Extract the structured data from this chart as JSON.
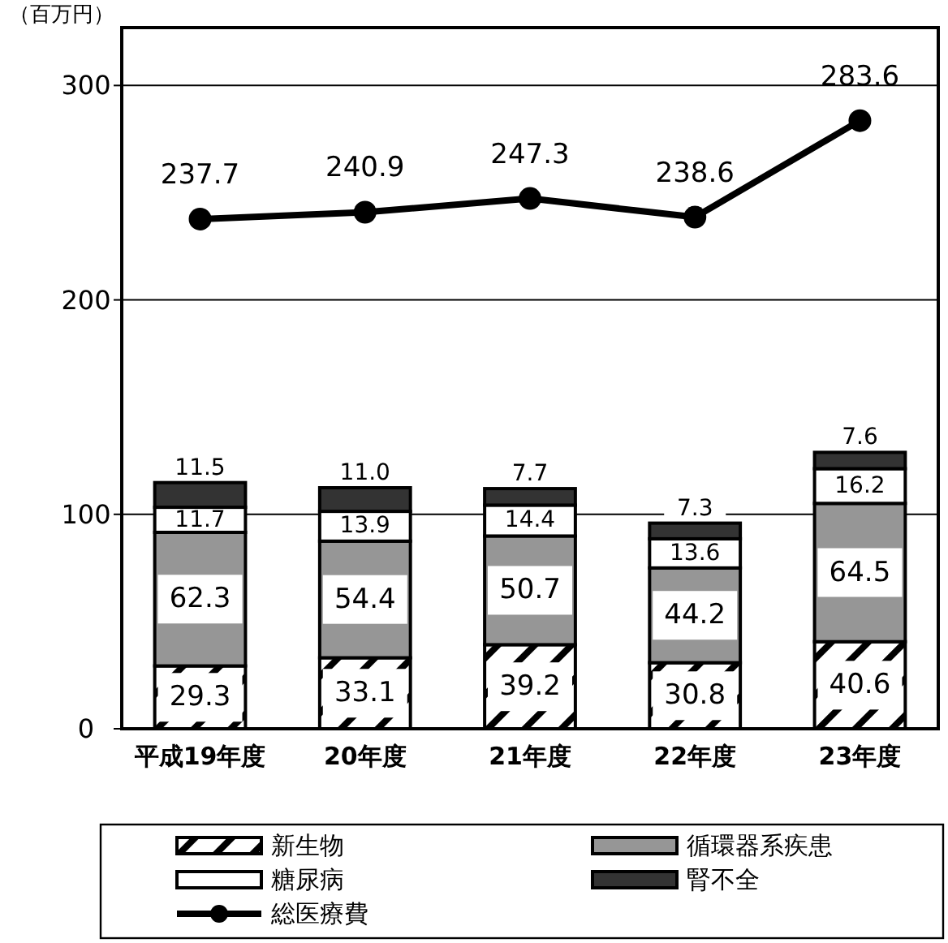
{
  "chart_data": {
    "type": "bar",
    "stacked": true,
    "ylabel": "（百万円）",
    "categories": [
      "平成19年度",
      "20年度",
      "21年度",
      "22年度",
      "23年度"
    ],
    "series": [
      {
        "name": "新生物",
        "color": "#000000",
        "values": [
          29.3,
          33.1,
          39.2,
          30.8,
          40.6
        ]
      },
      {
        "name": "循環器系疾患",
        "color": "#969696",
        "values": [
          62.3,
          54.4,
          50.7,
          44.2,
          64.5
        ]
      },
      {
        "name": "糖尿病",
        "color": "#ffffff",
        "values": [
          11.7,
          13.9,
          14.4,
          13.6,
          16.2
        ]
      },
      {
        "name": "腎不全",
        "color": "#333333",
        "values": [
          11.5,
          11.0,
          7.7,
          7.3,
          7.6
        ],
        "value_labels": [
          "11.5",
          "11.0",
          "7.7",
          "7.3",
          "7.6"
        ]
      },
      {
        "name": "総医療費",
        "type": "line",
        "color": "#000000",
        "values": [
          237.7,
          240.9,
          247.3,
          238.6,
          283.6
        ]
      }
    ],
    "ylim": [
      0,
      327
    ],
    "yticks": [
      0,
      100,
      200,
      300
    ],
    "grid": "y",
    "legend": "bottom",
    "marker": "circle",
    "data_labels": true
  }
}
